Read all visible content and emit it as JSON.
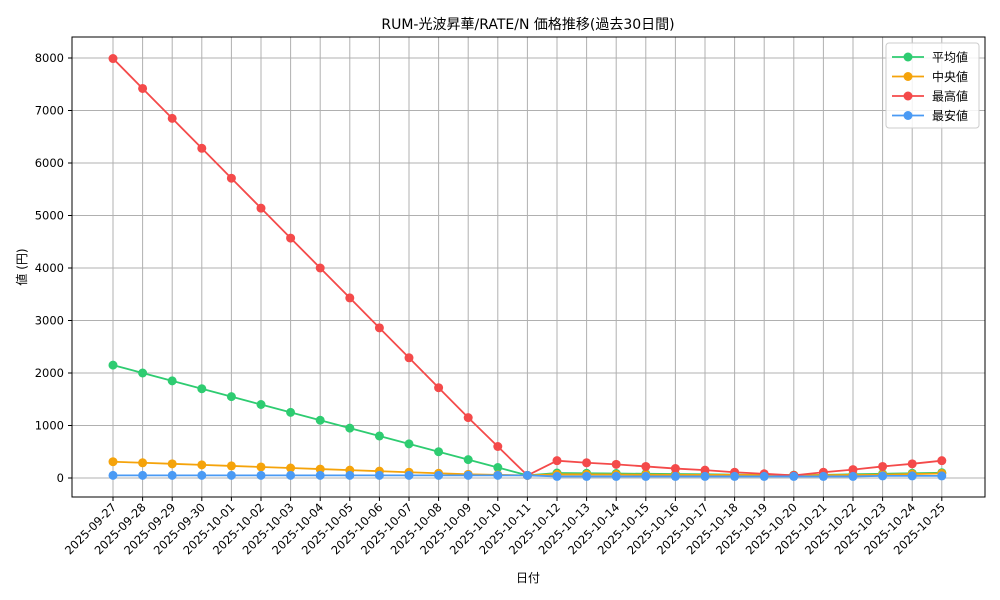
{
  "chart_data": {
    "type": "line",
    "title": "RUM-光波昇華/RATE/N 価格推移(過去30日間)",
    "xlabel": "日付",
    "ylabel": "値 (円)",
    "ylim": [
      -370,
      8400
    ],
    "yticks": [
      0,
      1000,
      2000,
      3000,
      4000,
      5000,
      6000,
      7000,
      8000
    ],
    "grid": true,
    "legend_position": "upper right",
    "categories": [
      "2025-09-27",
      "2025-09-28",
      "2025-09-29",
      "2025-09-30",
      "2025-10-01",
      "2025-10-02",
      "2025-10-03",
      "2025-10-04",
      "2025-10-05",
      "2025-10-06",
      "2025-10-07",
      "2025-10-08",
      "2025-10-09",
      "2025-10-10",
      "2025-10-11",
      "2025-10-12",
      "2025-10-13",
      "2025-10-14",
      "2025-10-15",
      "2025-10-16",
      "2025-10-17",
      "2025-10-18",
      "2025-10-19",
      "2025-10-20",
      "2025-10-21",
      "2025-10-22",
      "2025-10-23",
      "2025-10-24",
      "2025-10-25"
    ],
    "series": [
      {
        "name": "平均値",
        "color": "#2ecc71",
        "values": [
          2150,
          2000,
          1850,
          1700,
          1550,
          1400,
          1250,
          1100,
          950,
          800,
          650,
          500,
          350,
          200,
          50,
          95,
          90,
          85,
          80,
          75,
          70,
          65,
          60,
          55,
          60,
          70,
          80,
          90,
          100
        ]
      },
      {
        "name": "中央値",
        "color": "#f5a30a",
        "values": [
          310,
          290,
          270,
          250,
          230,
          210,
          190,
          170,
          150,
          130,
          110,
          90,
          70,
          60,
          50,
          70,
          68,
          66,
          64,
          62,
          60,
          58,
          56,
          50,
          55,
          60,
          65,
          75,
          85
        ]
      },
      {
        "name": "最高値",
        "color": "#f44a4a",
        "values": [
          7990,
          7420,
          6850,
          6280,
          5710,
          5140,
          4570,
          4000,
          3430,
          2860,
          2290,
          1720,
          1150,
          600,
          50,
          330,
          290,
          260,
          220,
          180,
          150,
          110,
          80,
          50,
          110,
          160,
          220,
          270,
          330
        ]
      },
      {
        "name": "最安値",
        "color": "#4a9af4",
        "values": [
          50,
          50,
          50,
          50,
          50,
          50,
          50,
          50,
          50,
          50,
          50,
          50,
          50,
          50,
          50,
          30,
          30,
          30,
          30,
          30,
          30,
          30,
          30,
          30,
          30,
          30,
          40,
          40,
          40
        ]
      }
    ]
  }
}
